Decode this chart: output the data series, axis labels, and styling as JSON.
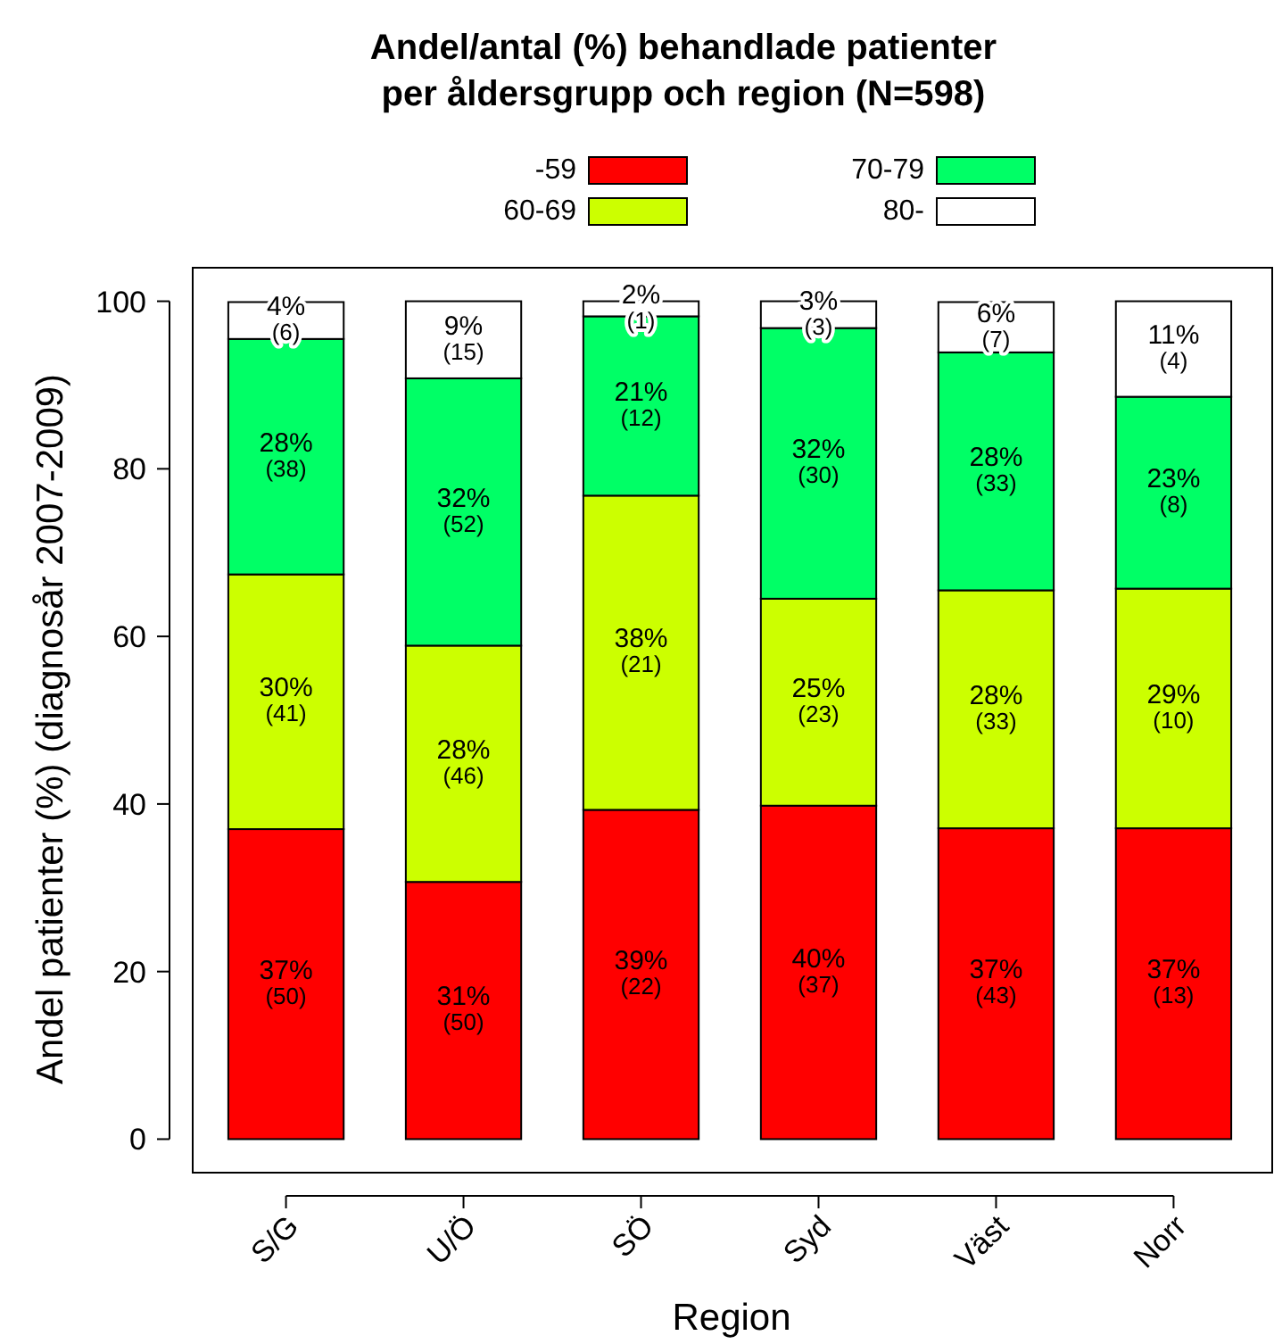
{
  "chart_data": {
    "type": "bar",
    "title": "Andel/antal (%) behandlade patienter\nper åldersgrupp och region (N=598)",
    "xlabel": "Region",
    "ylabel": "Andel patienter (%) (diagnosår 2007-2009)",
    "categories": [
      "S/G",
      "U/Ö",
      "SÖ",
      "Syd",
      "Väst",
      "Norr"
    ],
    "stacked": true,
    "ylim": [
      -4,
      104
    ],
    "yticks": [
      0,
      20,
      40,
      60,
      80,
      100
    ],
    "grid": false,
    "legend": "top",
    "series": [
      {
        "name": "-59",
        "color": "#ff0000",
        "values": [
          37.0,
          30.7,
          39.3,
          39.8,
          37.1,
          37.1
        ],
        "value_labels": [
          "37%\n(50)",
          "31%\n(50)",
          "39%\n(22)",
          "40%\n(37)",
          "37%\n(43)",
          "37%\n(13)"
        ]
      },
      {
        "name": "60-69",
        "color": "#ccff00",
        "values": [
          30.4,
          28.2,
          37.5,
          24.7,
          28.4,
          28.6
        ],
        "value_labels": [
          "30%\n(41)",
          "28%\n(46)",
          "38%\n(21)",
          "25%\n(23)",
          "28%\n(33)",
          "29%\n(10)"
        ]
      },
      {
        "name": "70-79",
        "color": "#00ff66",
        "values": [
          28.1,
          31.9,
          21.4,
          32.3,
          28.4,
          22.9
        ],
        "value_labels": [
          "28%\n(38)",
          "32%\n(52)",
          "21%\n(12)",
          "32%\n(30)",
          "28%\n(33)",
          "23%\n(8)"
        ]
      },
      {
        "name": "80-",
        "color": "#ffffff",
        "values": [
          4.4,
          9.2,
          1.8,
          3.2,
          6.0,
          11.4
        ],
        "value_labels": [
          "4%\n(6)",
          "9%\n(15)",
          "2%\n(1)",
          "3%\n(3)",
          "6%\n(7)",
          "11%\n(4)"
        ]
      }
    ]
  }
}
